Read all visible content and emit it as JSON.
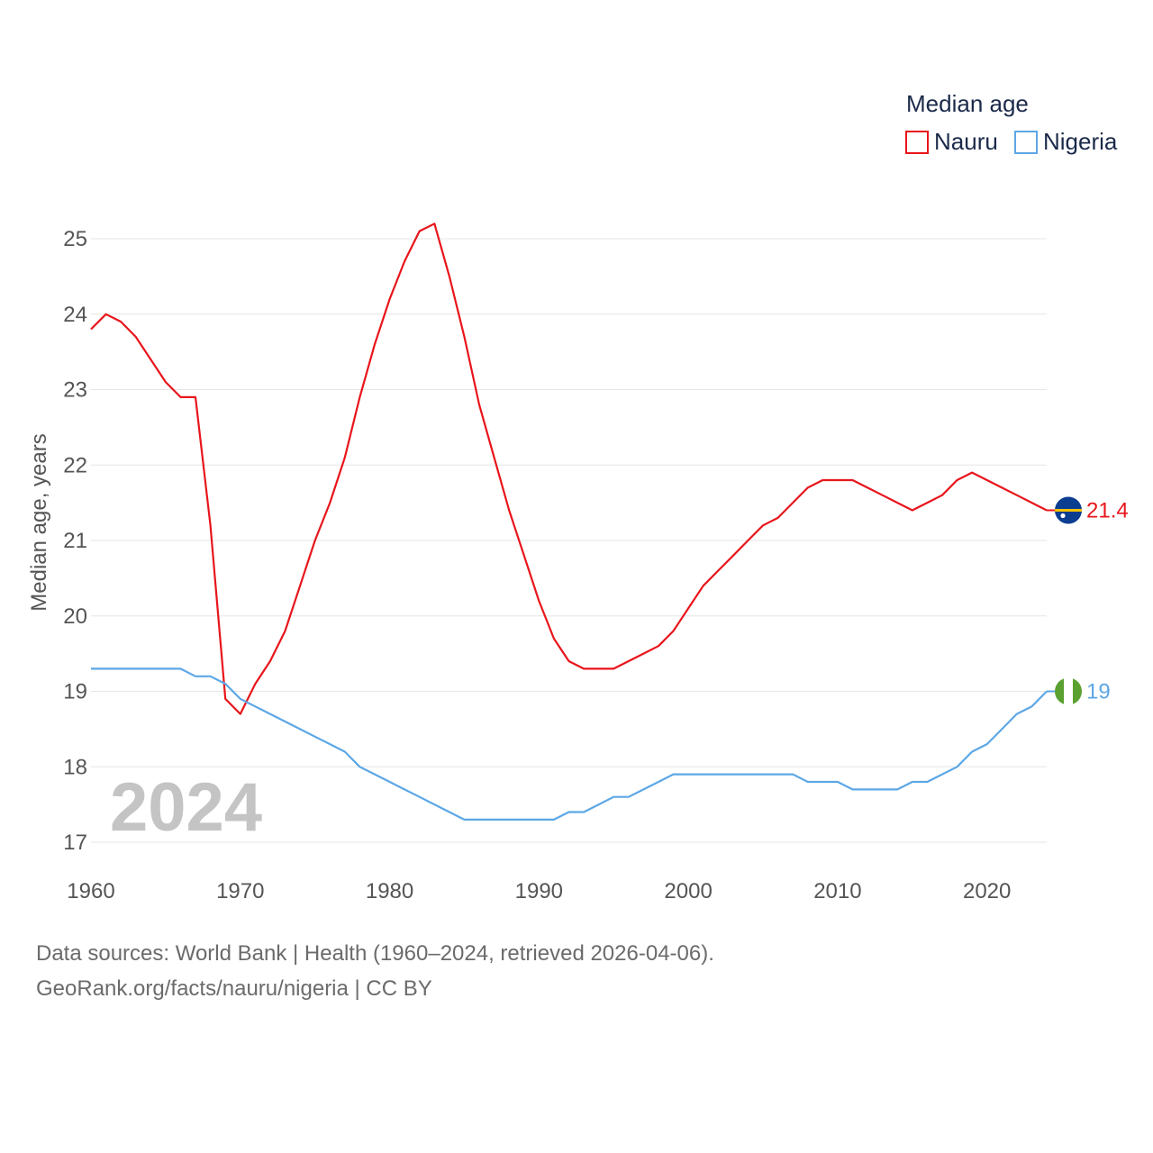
{
  "chart_data": {
    "type": "line",
    "title": "",
    "legend_title": "Median age",
    "legend_position": "top-right",
    "xlabel": "",
    "ylabel": "Median age, years",
    "xlim": [
      1960,
      2024
    ],
    "ylim": [
      17,
      25
    ],
    "x_ticks": [
      1960,
      1970,
      1980,
      1990,
      2000,
      2010,
      2020
    ],
    "y_ticks": [
      17,
      18,
      19,
      20,
      21,
      22,
      23,
      24,
      25
    ],
    "grid": true,
    "current_year_label": "2024",
    "x": [
      1960,
      1961,
      1962,
      1963,
      1964,
      1965,
      1966,
      1967,
      1968,
      1969,
      1970,
      1971,
      1972,
      1973,
      1974,
      1975,
      1976,
      1977,
      1978,
      1979,
      1980,
      1981,
      1982,
      1983,
      1984,
      1985,
      1986,
      1987,
      1988,
      1989,
      1990,
      1991,
      1992,
      1993,
      1994,
      1995,
      1996,
      1997,
      1998,
      1999,
      2000,
      2001,
      2002,
      2003,
      2004,
      2005,
      2006,
      2007,
      2008,
      2009,
      2010,
      2011,
      2012,
      2013,
      2014,
      2015,
      2016,
      2017,
      2018,
      2019,
      2020,
      2021,
      2022,
      2023,
      2024
    ],
    "series": [
      {
        "name": "Nauru",
        "color": "#e8151b",
        "end_label": "21.4",
        "flag": "nauru-flag",
        "values": [
          23.8,
          24.0,
          23.9,
          23.7,
          23.4,
          23.1,
          22.9,
          22.9,
          21.2,
          18.9,
          18.7,
          19.1,
          19.4,
          19.8,
          20.4,
          21.0,
          21.5,
          22.1,
          22.9,
          23.6,
          24.2,
          24.7,
          25.1,
          25.2,
          24.5,
          23.7,
          22.8,
          22.1,
          21.4,
          20.8,
          20.2,
          19.7,
          19.4,
          19.3,
          19.3,
          19.3,
          19.4,
          19.5,
          19.6,
          19.8,
          20.1,
          20.4,
          20.6,
          20.8,
          21.0,
          21.2,
          21.3,
          21.5,
          21.7,
          21.8,
          21.8,
          21.8,
          21.7,
          21.6,
          21.5,
          21.4,
          21.5,
          21.6,
          21.8,
          21.9,
          21.8,
          21.7,
          21.6,
          21.5,
          21.4
        ]
      },
      {
        "name": "Nigeria",
        "color": "#5da7e5",
        "end_label": "19",
        "flag": "nigeria-flag",
        "values": [
          19.3,
          19.3,
          19.3,
          19.3,
          19.3,
          19.3,
          19.3,
          19.2,
          19.2,
          19.1,
          18.9,
          18.8,
          18.7,
          18.6,
          18.5,
          18.4,
          18.3,
          18.2,
          18.0,
          17.9,
          17.8,
          17.7,
          17.6,
          17.5,
          17.4,
          17.3,
          17.3,
          17.3,
          17.3,
          17.3,
          17.3,
          17.3,
          17.4,
          17.4,
          17.5,
          17.6,
          17.6,
          17.7,
          17.8,
          17.9,
          17.9,
          17.9,
          17.9,
          17.9,
          17.9,
          17.9,
          17.9,
          17.9,
          17.8,
          17.8,
          17.8,
          17.7,
          17.7,
          17.7,
          17.7,
          17.8,
          17.8,
          17.9,
          18.0,
          18.2,
          18.3,
          18.5,
          18.7,
          18.8,
          19.0
        ]
      }
    ]
  },
  "footer": {
    "line1": "Data sources: World Bank | Health (1960–2024, retrieved 2026-04-06).",
    "line2": "GeoRank.org/facts/nauru/nigeria | CC BY"
  }
}
